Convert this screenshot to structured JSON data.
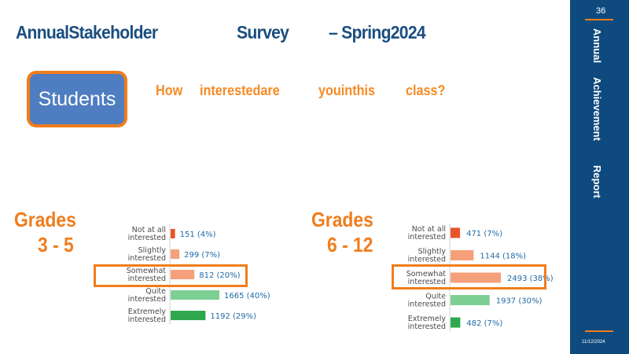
{
  "header": {
    "title_parts": [
      "AnnualStakeholder",
      "Survey",
      "– Spring2024"
    ]
  },
  "students_label": "Students",
  "question_parts": [
    "How",
    "interestedare",
    "youinthis",
    "class?"
  ],
  "sidebar": {
    "page_number": "36",
    "labels": [
      "Annual",
      "Achievement",
      "Report"
    ],
    "date": "11/12/2024"
  },
  "groups": [
    {
      "grades_word": "Grades",
      "range": "3 - 5"
    },
    {
      "grades_word": "Grades",
      "range": "6 - 12"
    }
  ],
  "chart_data": [
    {
      "type": "bar",
      "orientation": "horizontal",
      "categories": [
        [
          "Not at all",
          "interested"
        ],
        [
          "Slightly",
          "interested"
        ],
        [
          "Somewhat",
          "interested"
        ],
        [
          "Quite",
          "interested"
        ],
        [
          "Extremely",
          "interested"
        ]
      ],
      "values": [
        151,
        299,
        812,
        1665,
        1192
      ],
      "value_labels": [
        "151 (4%)",
        "299 (7%)",
        "812 (20%)",
        "1665 (40%)",
        "1192 (29%)"
      ],
      "bar_colors": [
        "#e8542a",
        "#f5a07a",
        "#f5a07a",
        "#7dcf94",
        "#2fa84f"
      ],
      "highlighted_category": 2,
      "highlight_color": "#f07d1c"
    },
    {
      "type": "bar",
      "orientation": "horizontal",
      "categories": [
        [
          "Not at all",
          "interested"
        ],
        [
          "Slightly",
          "interested"
        ],
        [
          "Somewhat",
          "interested"
        ],
        [
          "Quite",
          "interested"
        ],
        [
          "Extremely",
          "interested"
        ]
      ],
      "values": [
        471,
        1144,
        2493,
        1937,
        482
      ],
      "value_labels": [
        "471 (7%)",
        "1144 (18%)",
        "2493 (38%)",
        "1937 (30%)",
        "482 (7%)"
      ],
      "bar_colors": [
        "#e8542a",
        "#f5a07a",
        "#f5a07a",
        "#7dcf94",
        "#2fa84f"
      ],
      "highlighted_category": 2,
      "highlight_color": "#f07d1c"
    }
  ]
}
